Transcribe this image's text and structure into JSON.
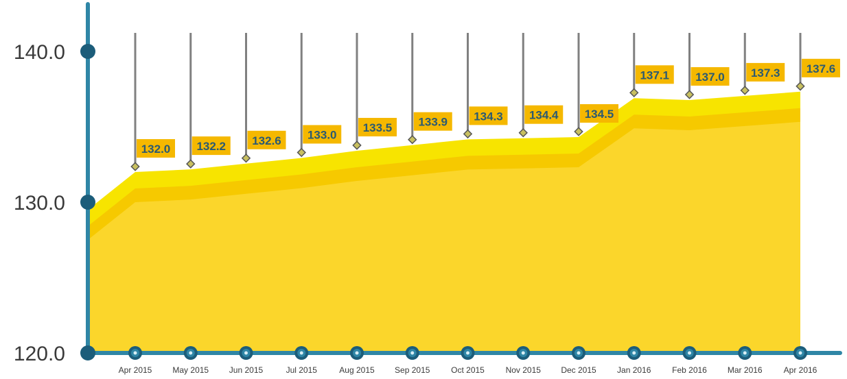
{
  "chart_data": {
    "type": "area",
    "categories": [
      "Apr 2015",
      "May 2015",
      "Jun 2015",
      "Jul 2015",
      "Aug 2015",
      "Sep 2015",
      "Oct 2015",
      "Nov 2015",
      "Dec 2015",
      "Jan 2016",
      "Feb 2016",
      "Mar 2016",
      "Apr 2016"
    ],
    "values": [
      132.0,
      132.2,
      132.6,
      133.0,
      133.5,
      133.9,
      134.3,
      134.4,
      134.5,
      137.1,
      137.0,
      137.3,
      137.6
    ],
    "value_labels": [
      "132.0",
      "132.2",
      "132.6",
      "133.0",
      "133.5",
      "133.9",
      "134.3",
      "134.4",
      "134.5",
      "137.1",
      "137.0",
      "137.3",
      "137.6"
    ],
    "start_value": 129.5,
    "yticks": [
      "120.0",
      "130.0",
      "140.0"
    ],
    "ylim": [
      120,
      140
    ],
    "title": "",
    "xlabel": "",
    "ylabel": "",
    "grid": false,
    "colors": {
      "axis": "#2f86a6",
      "axis_dot": "#1c5d7a",
      "area_top": "#f7e400",
      "area_mid": "#f6c900",
      "area_main": "#fbd62b",
      "label_bg": "#f5b800",
      "label_text": "#2b5a72",
      "stem": "#808080",
      "marker": "#c8c060",
      "marker_stroke": "#555555"
    }
  }
}
